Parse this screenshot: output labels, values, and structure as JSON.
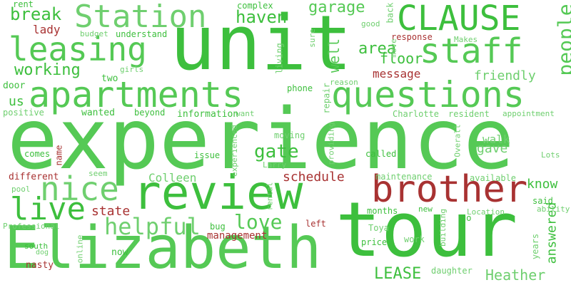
{
  "colors": {
    "light": "#6fcf6f",
    "mid": "#55c955",
    "green": "#3dbf3d",
    "red": "#a83232",
    "background": "#ffffff"
  },
  "words": [
    {
      "text": "experience",
      "color": "mid"
    },
    {
      "text": "unit",
      "color": "green"
    },
    {
      "text": "tour",
      "color": "green"
    },
    {
      "text": "Elizabeth",
      "color": "mid"
    },
    {
      "text": "review",
      "color": "green"
    },
    {
      "text": "apartments",
      "color": "mid"
    },
    {
      "text": "questions",
      "color": "mid"
    },
    {
      "text": "brother",
      "color": "red"
    },
    {
      "text": "CLAUSE",
      "color": "green"
    },
    {
      "text": "staff",
      "color": "mid"
    },
    {
      "text": "leasing",
      "color": "mid"
    },
    {
      "text": "Station",
      "color": "light"
    },
    {
      "text": "nice",
      "color": "light"
    },
    {
      "text": "live",
      "color": "green"
    },
    {
      "text": "helpful",
      "color": "light"
    },
    {
      "text": "people",
      "color": "mid"
    },
    {
      "text": "love",
      "color": "mid"
    },
    {
      "text": "gate",
      "color": "green"
    },
    {
      "text": "working",
      "color": "green"
    },
    {
      "text": "break",
      "color": "green"
    },
    {
      "text": "haven",
      "color": "green"
    },
    {
      "text": "garage",
      "color": "mid"
    },
    {
      "text": "area",
      "color": "green"
    },
    {
      "text": "floor",
      "color": "green"
    },
    {
      "text": "well",
      "color": "mid"
    },
    {
      "text": "message",
      "color": "red"
    },
    {
      "text": "friendly",
      "color": "light"
    },
    {
      "text": "answered",
      "color": "green"
    },
    {
      "text": "schedule",
      "color": "red"
    },
    {
      "text": "know",
      "color": "green"
    },
    {
      "text": "LEASE",
      "color": "green"
    },
    {
      "text": "Heather",
      "color": "light"
    },
    {
      "text": "state",
      "color": "red"
    },
    {
      "text": "management",
      "color": "red"
    },
    {
      "text": "Colleen",
      "color": "light"
    },
    {
      "text": "gave",
      "color": "light"
    },
    {
      "text": "walk",
      "color": "light"
    },
    {
      "text": "lady",
      "color": "red"
    },
    {
      "text": "us",
      "color": "green"
    },
    {
      "text": "rent",
      "color": "green"
    },
    {
      "text": "complex",
      "color": "green"
    },
    {
      "text": "back",
      "color": "light"
    },
    {
      "text": "good",
      "color": "light"
    },
    {
      "text": "budget",
      "color": "light"
    },
    {
      "text": "understand",
      "color": "green"
    },
    {
      "text": "response",
      "color": "red"
    },
    {
      "text": "Makes",
      "color": "light"
    },
    {
      "text": "sure",
      "color": "light"
    },
    {
      "text": "move",
      "color": "light"
    },
    {
      "text": "living",
      "color": "light"
    },
    {
      "text": "girls",
      "color": "light"
    },
    {
      "text": "two",
      "color": "green"
    },
    {
      "text": "door",
      "color": "green"
    },
    {
      "text": "reason",
      "color": "light"
    },
    {
      "text": "phone",
      "color": "green"
    },
    {
      "text": "repair",
      "color": "light"
    },
    {
      "text": "positive",
      "color": "light"
    },
    {
      "text": "wanted",
      "color": "green"
    },
    {
      "text": "beyond",
      "color": "green"
    },
    {
      "text": "information",
      "color": "green"
    },
    {
      "text": "want",
      "color": "light"
    },
    {
      "text": "Charlotte",
      "color": "light"
    },
    {
      "text": "resident",
      "color": "light"
    },
    {
      "text": "appointment",
      "color": "light"
    },
    {
      "text": "Overall",
      "color": "light"
    },
    {
      "text": "experienced",
      "color": "light"
    },
    {
      "text": "providing",
      "color": "light"
    },
    {
      "text": "moving",
      "color": "light"
    },
    {
      "text": "comes",
      "color": "green"
    },
    {
      "text": "name",
      "color": "red"
    },
    {
      "text": "issue",
      "color": "green"
    },
    {
      "text": "called",
      "color": "green"
    },
    {
      "text": "Larry",
      "color": "light"
    },
    {
      "text": "Lots",
      "color": "light"
    },
    {
      "text": "different",
      "color": "red"
    },
    {
      "text": "seem",
      "color": "light"
    },
    {
      "text": "maintenance",
      "color": "light"
    },
    {
      "text": "available",
      "color": "light"
    },
    {
      "text": "said",
      "color": "green"
    },
    {
      "text": "pool",
      "color": "light"
    },
    {
      "text": "rental",
      "color": "light"
    },
    {
      "text": "months",
      "color": "green"
    },
    {
      "text": "new",
      "color": "green"
    },
    {
      "text": "Location",
      "color": "light"
    },
    {
      "text": "ability",
      "color": "light"
    },
    {
      "text": "Professional",
      "color": "light"
    },
    {
      "text": "bug",
      "color": "green"
    },
    {
      "text": "left",
      "color": "red"
    },
    {
      "text": "go",
      "color": "green"
    },
    {
      "text": "Toya",
      "color": "light"
    },
    {
      "text": "south",
      "color": "green"
    },
    {
      "text": "dog",
      "color": "light"
    },
    {
      "text": "online",
      "color": "light"
    },
    {
      "text": "price",
      "color": "green"
    },
    {
      "text": "work",
      "color": "light"
    },
    {
      "text": "building",
      "color": "light"
    },
    {
      "text": "years",
      "color": "light"
    },
    {
      "text": "now",
      "color": "green"
    },
    {
      "text": "nasty",
      "color": "red"
    },
    {
      "text": "daughter",
      "color": "light"
    }
  ]
}
